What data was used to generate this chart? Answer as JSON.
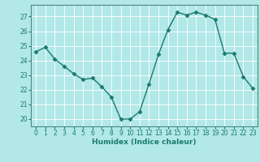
{
  "x": [
    0,
    1,
    2,
    3,
    4,
    5,
    6,
    7,
    8,
    9,
    10,
    11,
    12,
    13,
    14,
    15,
    16,
    17,
    18,
    19,
    20,
    21,
    22,
    23
  ],
  "y": [
    24.6,
    24.9,
    24.1,
    23.6,
    23.1,
    22.7,
    22.8,
    22.2,
    21.5,
    20.0,
    20.0,
    20.5,
    22.4,
    24.4,
    26.1,
    27.3,
    27.1,
    27.3,
    27.1,
    26.8,
    24.5,
    24.5,
    22.9,
    22.1
  ],
  "line_color": "#1a7a6e",
  "marker": "D",
  "marker_size": 2.5,
  "bg_color": "#b2e8e8",
  "grid_color": "#ffffff",
  "xlabel": "Humidex (Indice chaleur)",
  "ylim": [
    19.5,
    27.8
  ],
  "yticks": [
    20,
    21,
    22,
    23,
    24,
    25,
    26,
    27
  ],
  "xticks": [
    0,
    1,
    2,
    3,
    4,
    5,
    6,
    7,
    8,
    9,
    10,
    11,
    12,
    13,
    14,
    15,
    16,
    17,
    18,
    19,
    20,
    21,
    22,
    23
  ],
  "xlabel_fontsize": 6.5,
  "tick_fontsize": 5.5,
  "line_width": 1.0,
  "spine_color": "#4a8a80",
  "tick_color": "#1a7a6e"
}
